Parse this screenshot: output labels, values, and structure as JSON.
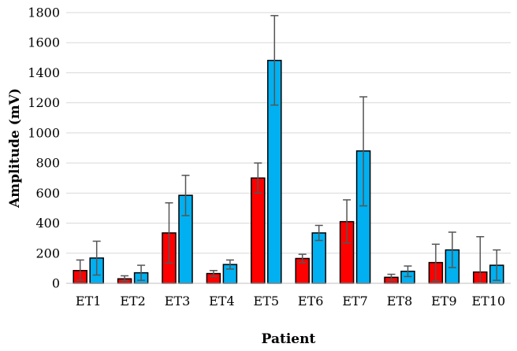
{
  "chart_data": {
    "type": "bar",
    "title": "",
    "xlabel": "Patient",
    "ylabel": "Amplitude (mV)",
    "ylim": [
      0,
      1800
    ],
    "yticks": [
      0,
      200,
      400,
      600,
      800,
      1000,
      1200,
      1400,
      1600,
      1800
    ],
    "grid": true,
    "legend": "none",
    "categories": [
      "ET1",
      "ET2",
      "ET3",
      "ET4",
      "ET5",
      "ET6",
      "ET7",
      "ET8",
      "ET9",
      "ET10"
    ],
    "series": [
      {
        "color": "#ff0000",
        "values": [
          85,
          30,
          335,
          65,
          700,
          165,
          410,
          40,
          138,
          75
        ],
        "error_low": [
          20,
          15,
          135,
          45,
          600,
          138,
          268,
          20,
          15,
          0
        ],
        "error_high": [
          155,
          50,
          535,
          85,
          800,
          193,
          555,
          60,
          260,
          310
        ]
      },
      {
        "color": "#00b0f0",
        "values": [
          168,
          70,
          585,
          125,
          1482,
          335,
          880,
          80,
          222,
          120
        ],
        "error_low": [
          55,
          20,
          450,
          95,
          1185,
          285,
          515,
          45,
          105,
          20
        ],
        "error_high": [
          280,
          120,
          718,
          155,
          1780,
          385,
          1240,
          115,
          340,
          222
        ]
      }
    ]
  }
}
